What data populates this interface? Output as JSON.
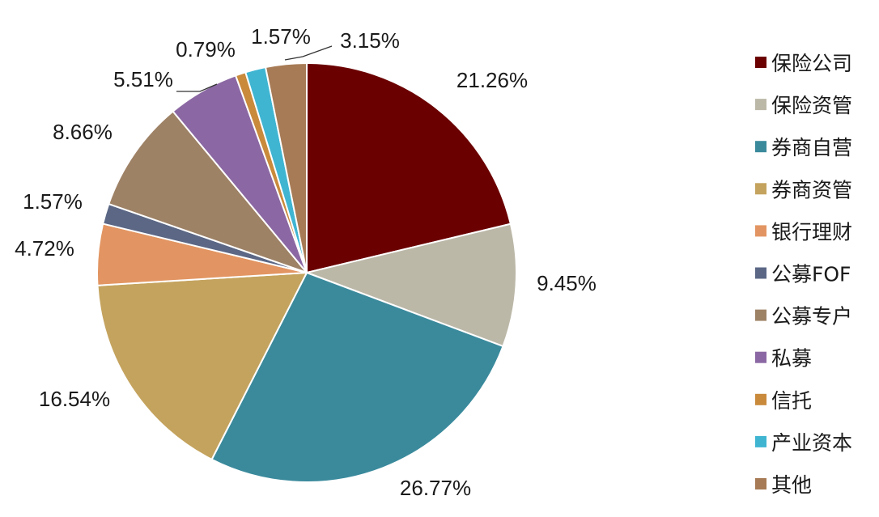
{
  "chart_data": {
    "type": "pie",
    "start_angle_deg": 0,
    "direction": "clockwise",
    "legend_position": "right",
    "slices": [
      {
        "label": "保险公司",
        "value": 21.26,
        "value_label": "21.26%",
        "color": "#6b0000"
      },
      {
        "label": "保险资管",
        "value": 9.45,
        "value_label": "9.45%",
        "color": "#bcb8a8"
      },
      {
        "label": "券商自营",
        "value": 26.77,
        "value_label": "26.77%",
        "color": "#3a8a9c"
      },
      {
        "label": "券商资管",
        "value": 16.54,
        "value_label": "16.54%",
        "color": "#c4a35e"
      },
      {
        "label": "银行理财",
        "value": 4.72,
        "value_label": "4.72%",
        "color": "#e29562"
      },
      {
        "label": "公募FOF",
        "value": 1.57,
        "value_label": "1.57%",
        "color": "#5b6785"
      },
      {
        "label": "公募专户",
        "value": 8.66,
        "value_label": "8.66%",
        "color": "#9e8266"
      },
      {
        "label": "私募",
        "value": 5.51,
        "value_label": "5.51%",
        "color": "#8b68a3"
      },
      {
        "label": "信托",
        "value": 0.79,
        "value_label": "0.79%",
        "color": "#c98a3c"
      },
      {
        "label": "产业资本",
        "value": 1.57,
        "value_label": "1.57%",
        "color": "#3fb5d2"
      },
      {
        "label": "其他",
        "value": 3.15,
        "value_label": "3.15%",
        "color": "#a77b55"
      }
    ]
  }
}
